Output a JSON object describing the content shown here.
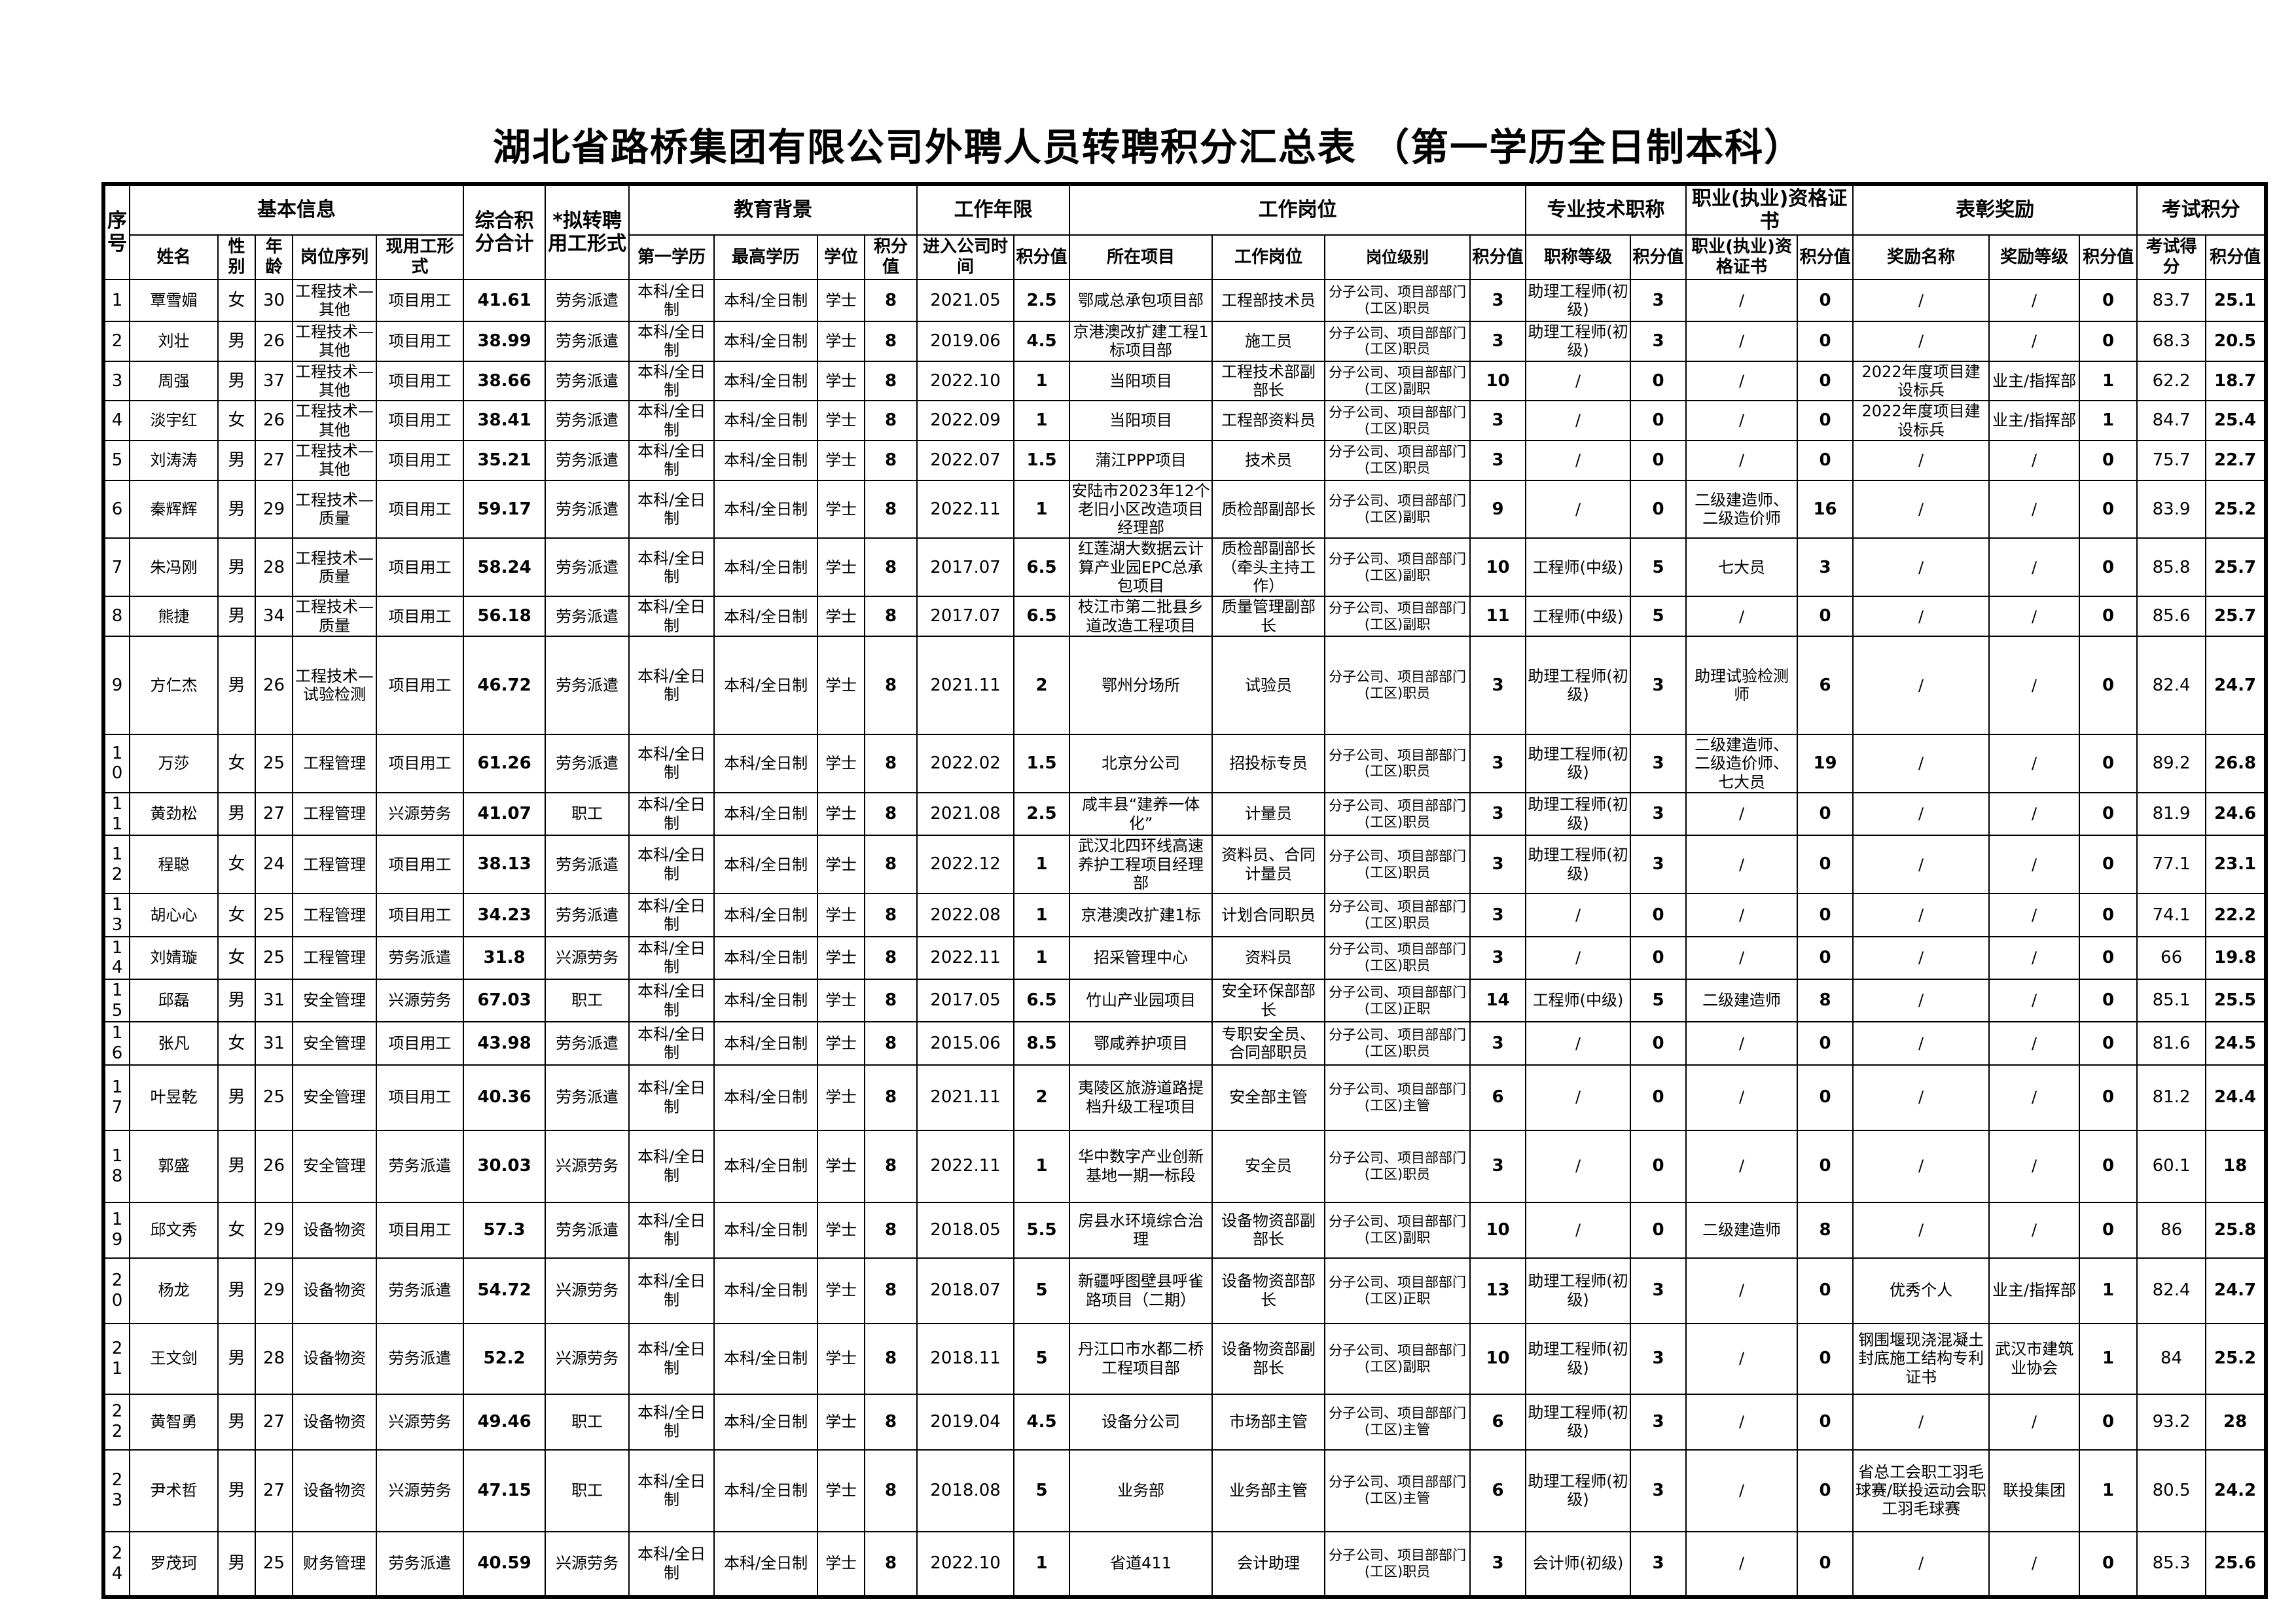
{
  "page": {
    "title": "湖北省路桥集团有限公司外聘人员转聘积分汇总表 （第一学历全日制本科）"
  },
  "table": {
    "group_headers": [
      {
        "label": "序号",
        "colspan": 1,
        "rowspan": 2
      },
      {
        "label": "基本信息",
        "colspan": 5,
        "rowspan": 1
      },
      {
        "label": "综合积分合计",
        "colspan": 1,
        "rowspan": 2
      },
      {
        "label": "*拟转聘用工形式",
        "colspan": 1,
        "rowspan": 2
      },
      {
        "label": "教育背景",
        "colspan": 4,
        "rowspan": 1
      },
      {
        "label": "工作年限",
        "colspan": 2,
        "rowspan": 1
      },
      {
        "label": "工作岗位",
        "colspan": 4,
        "rowspan": 1
      },
      {
        "label": "专业技术职称",
        "colspan": 2,
        "rowspan": 1
      },
      {
        "label": "职业(执业)资格证书",
        "colspan": 2,
        "rowspan": 1
      },
      {
        "label": "表彰奖励",
        "colspan": 3,
        "rowspan": 1
      },
      {
        "label": "考试积分",
        "colspan": 2,
        "rowspan": 1
      }
    ],
    "sub_headers": [
      "姓名",
      "性别",
      "年龄",
      "岗位序列",
      "现用工形式",
      "第一学历",
      "最高学历",
      "学位",
      "积分值",
      "进入公司时间",
      "积分值",
      "所在项目",
      "工作岗位",
      "岗位级别",
      "积分值",
      "职称等级",
      "积分值",
      "职业(执业)资格证书",
      "积分值",
      "奖励名称",
      "奖励等级",
      "积分值",
      "考试得分",
      "积分值"
    ],
    "rows": [
      [
        "1",
        "覃雪媚",
        "女",
        "30",
        "工程技术—其他",
        "项目用工",
        "41.61",
        "劳务派遣",
        "本科/全日制",
        "本科/全日制",
        "学士",
        "8",
        "2021.05",
        "2.5",
        "鄂咸总承包项目部",
        "工程部技术员",
        "分子公司、项目部部门(工区)职员",
        "3",
        "助理工程师(初级)",
        "3",
        "/",
        "0",
        "/",
        "/",
        "0",
        "83.7",
        "25.1"
      ],
      [
        "2",
        "刘壮",
        "男",
        "26",
        "工程技术—其他",
        "项目用工",
        "38.99",
        "劳务派遣",
        "本科/全日制",
        "本科/全日制",
        "学士",
        "8",
        "2019.06",
        "4.5",
        "京港澳改扩建工程1标项目部",
        "施工员",
        "分子公司、项目部部门(工区)职员",
        "3",
        "助理工程师(初级)",
        "3",
        "/",
        "0",
        "/",
        "/",
        "0",
        "68.3",
        "20.5"
      ],
      [
        "3",
        "周强",
        "男",
        "37",
        "工程技术—其他",
        "项目用工",
        "38.66",
        "劳务派遣",
        "本科/全日制",
        "本科/全日制",
        "学士",
        "8",
        "2022.10",
        "1",
        "当阳项目",
        "工程技术部副部长",
        "分子公司、项目部部门(工区)副职",
        "10",
        "/",
        "0",
        "/",
        "0",
        "2022年度项目建设标兵",
        "业主/指挥部",
        "1",
        "62.2",
        "18.7"
      ],
      [
        "4",
        "淡宇红",
        "女",
        "26",
        "工程技术—其他",
        "项目用工",
        "38.41",
        "劳务派遣",
        "本科/全日制",
        "本科/全日制",
        "学士",
        "8",
        "2022.09",
        "1",
        "当阳项目",
        "工程部资料员",
        "分子公司、项目部部门(工区)职员",
        "3",
        "/",
        "0",
        "/",
        "0",
        "2022年度项目建设标兵",
        "业主/指挥部",
        "1",
        "84.7",
        "25.4"
      ],
      [
        "5",
        "刘涛涛",
        "男",
        "27",
        "工程技术—其他",
        "项目用工",
        "35.21",
        "劳务派遣",
        "本科/全日制",
        "本科/全日制",
        "学士",
        "8",
        "2022.07",
        "1.5",
        "蒲江PPP项目",
        "技术员",
        "分子公司、项目部部门(工区)职员",
        "3",
        "/",
        "0",
        "/",
        "0",
        "/",
        "/",
        "0",
        "75.7",
        "22.7"
      ],
      [
        "6",
        "秦辉辉",
        "男",
        "29",
        "工程技术—质量",
        "项目用工",
        "59.17",
        "劳务派遣",
        "本科/全日制",
        "本科/全日制",
        "学士",
        "8",
        "2022.11",
        "1",
        "安陆市2023年12个老旧小区改造项目经理部",
        "质检部副部长",
        "分子公司、项目部部门(工区)副职",
        "9",
        "/",
        "0",
        "二级建造师、二级造价师",
        "16",
        "/",
        "/",
        "0",
        "83.9",
        "25.2"
      ],
      [
        "7",
        "朱冯刚",
        "男",
        "28",
        "工程技术—质量",
        "项目用工",
        "58.24",
        "劳务派遣",
        "本科/全日制",
        "本科/全日制",
        "学士",
        "8",
        "2017.07",
        "6.5",
        "红莲湖大数据云计算产业园EPC总承包项目",
        "质检部副部长（牵头主持工作）",
        "分子公司、项目部部门(工区)副职",
        "10",
        "工程师(中级)",
        "5",
        "七大员",
        "3",
        "/",
        "/",
        "0",
        "85.8",
        "25.7"
      ],
      [
        "8",
        "熊捷",
        "男",
        "34",
        "工程技术—质量",
        "项目用工",
        "56.18",
        "劳务派遣",
        "本科/全日制",
        "本科/全日制",
        "学士",
        "8",
        "2017.07",
        "6.5",
        "枝江市第二批县乡道改造工程项目",
        "质量管理副部长",
        "分子公司、项目部部门(工区)副职",
        "11",
        "工程师(中级)",
        "5",
        "/",
        "0",
        "/",
        "/",
        "0",
        "85.6",
        "25.7"
      ],
      [
        "9",
        "方仁杰",
        "男",
        "26",
        "工程技术—试验检测",
        "项目用工",
        "46.72",
        "劳务派遣",
        "本科/全日制",
        "本科/全日制",
        "学士",
        "8",
        "2021.11",
        "2",
        "鄂州分场所",
        "试验员",
        "分子公司、项目部部门(工区)职员",
        "3",
        "助理工程师(初级)",
        "3",
        "助理试验检测师",
        "6",
        "/",
        "/",
        "0",
        "82.4",
        "24.7"
      ],
      [
        "10",
        "万莎",
        "女",
        "25",
        "工程管理",
        "项目用工",
        "61.26",
        "劳务派遣",
        "本科/全日制",
        "本科/全日制",
        "学士",
        "8",
        "2022.02",
        "1.5",
        "北京分公司",
        "招投标专员",
        "分子公司、项目部部门(工区)职员",
        "3",
        "助理工程师(初级)",
        "3",
        "二级建造师、二级造价师、七大员",
        "19",
        "/",
        "/",
        "0",
        "89.2",
        "26.8"
      ],
      [
        "11",
        "黄劲松",
        "男",
        "27",
        "工程管理",
        "兴源劳务",
        "41.07",
        "职工",
        "本科/全日制",
        "本科/全日制",
        "学士",
        "8",
        "2021.08",
        "2.5",
        "咸丰县“建养一体化”",
        "计量员",
        "分子公司、项目部部门(工区)职员",
        "3",
        "助理工程师(初级)",
        "3",
        "/",
        "0",
        "/",
        "/",
        "0",
        "81.9",
        "24.6"
      ],
      [
        "12",
        "程聪",
        "女",
        "24",
        "工程管理",
        "项目用工",
        "38.13",
        "劳务派遣",
        "本科/全日制",
        "本科/全日制",
        "学士",
        "8",
        "2022.12",
        "1",
        "武汉北四环线高速养护工程项目经理部",
        "资料员、合同计量员",
        "分子公司、项目部部门(工区)职员",
        "3",
        "助理工程师(初级)",
        "3",
        "/",
        "0",
        "/",
        "/",
        "0",
        "77.1",
        "23.1"
      ],
      [
        "13",
        "胡心心",
        "女",
        "25",
        "工程管理",
        "项目用工",
        "34.23",
        "劳务派遣",
        "本科/全日制",
        "本科/全日制",
        "学士",
        "8",
        "2022.08",
        "1",
        "京港澳改扩建1标",
        "计划合同职员",
        "分子公司、项目部部门(工区)职员",
        "3",
        "/",
        "0",
        "/",
        "0",
        "/",
        "/",
        "0",
        "74.1",
        "22.2"
      ],
      [
        "14",
        "刘婧璇",
        "女",
        "25",
        "工程管理",
        "劳务派遣",
        "31.8",
        "兴源劳务",
        "本科/全日制",
        "本科/全日制",
        "学士",
        "8",
        "2022.11",
        "1",
        "招采管理中心",
        "资料员",
        "分子公司、项目部部门(工区)职员",
        "3",
        "/",
        "0",
        "/",
        "0",
        "/",
        "/",
        "0",
        "66",
        "19.8"
      ],
      [
        "15",
        "邱磊",
        "男",
        "31",
        "安全管理",
        "兴源劳务",
        "67.03",
        "职工",
        "本科/全日制",
        "本科/全日制",
        "学士",
        "8",
        "2017.05",
        "6.5",
        "竹山产业园项目",
        "安全环保部部长",
        "分子公司、项目部部门(工区)正职",
        "14",
        "工程师(中级)",
        "5",
        "二级建造师",
        "8",
        "/",
        "/",
        "0",
        "85.1",
        "25.5"
      ],
      [
        "16",
        "张凡",
        "女",
        "31",
        "安全管理",
        "项目用工",
        "43.98",
        "劳务派遣",
        "本科/全日制",
        "本科/全日制",
        "学士",
        "8",
        "2015.06",
        "8.5",
        "鄂咸养护项目",
        "专职安全员、合同部职员",
        "分子公司、项目部部门(工区)职员",
        "3",
        "/",
        "0",
        "/",
        "0",
        "/",
        "/",
        "0",
        "81.6",
        "24.5"
      ],
      [
        "17",
        "叶昱乾",
        "男",
        "25",
        "安全管理",
        "项目用工",
        "40.36",
        "劳务派遣",
        "本科/全日制",
        "本科/全日制",
        "学士",
        "8",
        "2021.11",
        "2",
        "夷陵区旅游道路提档升级工程项目",
        "安全部主管",
        "分子公司、项目部部门(工区)主管",
        "6",
        "/",
        "0",
        "/",
        "0",
        "/",
        "/",
        "0",
        "81.2",
        "24.4"
      ],
      [
        "18",
        "郭盛",
        "男",
        "26",
        "安全管理",
        "劳务派遣",
        "30.03",
        "兴源劳务",
        "本科/全日制",
        "本科/全日制",
        "学士",
        "8",
        "2022.11",
        "1",
        "华中数字产业创新基地一期一标段",
        "安全员",
        "分子公司、项目部部门(工区)职员",
        "3",
        "/",
        "0",
        "/",
        "0",
        "/",
        "/",
        "0",
        "60.1",
        "18"
      ],
      [
        "19",
        "邱文秀",
        "女",
        "29",
        "设备物资",
        "项目用工",
        "57.3",
        "劳务派遣",
        "本科/全日制",
        "本科/全日制",
        "学士",
        "8",
        "2018.05",
        "5.5",
        "房县水环境综合治理",
        "设备物资部副部长",
        "分子公司、项目部部门(工区)副职",
        "10",
        "/",
        "0",
        "二级建造师",
        "8",
        "/",
        "/",
        "0",
        "86",
        "25.8"
      ],
      [
        "20",
        "杨龙",
        "男",
        "29",
        "设备物资",
        "劳务派遣",
        "54.72",
        "兴源劳务",
        "本科/全日制",
        "本科/全日制",
        "学士",
        "8",
        "2018.07",
        "5",
        "新疆呼图壁县呼雀路项目（二期）",
        "设备物资部部长",
        "分子公司、项目部部门(工区)正职",
        "13",
        "助理工程师(初级)",
        "3",
        "/",
        "0",
        "优秀个人",
        "业主/指挥部",
        "1",
        "82.4",
        "24.7"
      ],
      [
        "21",
        "王文剑",
        "男",
        "28",
        "设备物资",
        "劳务派遣",
        "52.2",
        "兴源劳务",
        "本科/全日制",
        "本科/全日制",
        "学士",
        "8",
        "2018.11",
        "5",
        "丹江口市水都二桥工程项目部",
        "设备物资部副部长",
        "分子公司、项目部部门(工区)副职",
        "10",
        "助理工程师(初级)",
        "3",
        "/",
        "0",
        "钢围堰现浇混凝土封底施工结构专利证书",
        "武汉市建筑业协会",
        "1",
        "84",
        "25.2"
      ],
      [
        "22",
        "黄智勇",
        "男",
        "27",
        "设备物资",
        "兴源劳务",
        "49.46",
        "职工",
        "本科/全日制",
        "本科/全日制",
        "学士",
        "8",
        "2019.04",
        "4.5",
        "设备分公司",
        "市场部主管",
        "分子公司、项目部部门(工区)主管",
        "6",
        "助理工程师(初级)",
        "3",
        "/",
        "0",
        "/",
        "/",
        "0",
        "93.2",
        "28"
      ],
      [
        "23",
        "尹术哲",
        "男",
        "27",
        "设备物资",
        "兴源劳务",
        "47.15",
        "职工",
        "本科/全日制",
        "本科/全日制",
        "学士",
        "8",
        "2018.08",
        "5",
        "业务部",
        "业务部主管",
        "分子公司、项目部部门(工区)主管",
        "6",
        "助理工程师(初级)",
        "3",
        "/",
        "0",
        "省总工会职工羽毛球赛/联投运动会职工羽毛球赛",
        "联投集团",
        "1",
        "80.5",
        "24.2"
      ],
      [
        "24",
        "罗茂珂",
        "男",
        "25",
        "财务管理",
        "劳务派遣",
        "40.59",
        "兴源劳务",
        "本科/全日制",
        "本科/全日制",
        "学士",
        "8",
        "2022.10",
        "1",
        "省道411",
        "会计助理",
        "分子公司、项目部部门(工区)职员",
        "3",
        "会计师(初级)",
        "3",
        "/",
        "0",
        "/",
        "/",
        "0",
        "85.3",
        "25.6"
      ]
    ]
  }
}
